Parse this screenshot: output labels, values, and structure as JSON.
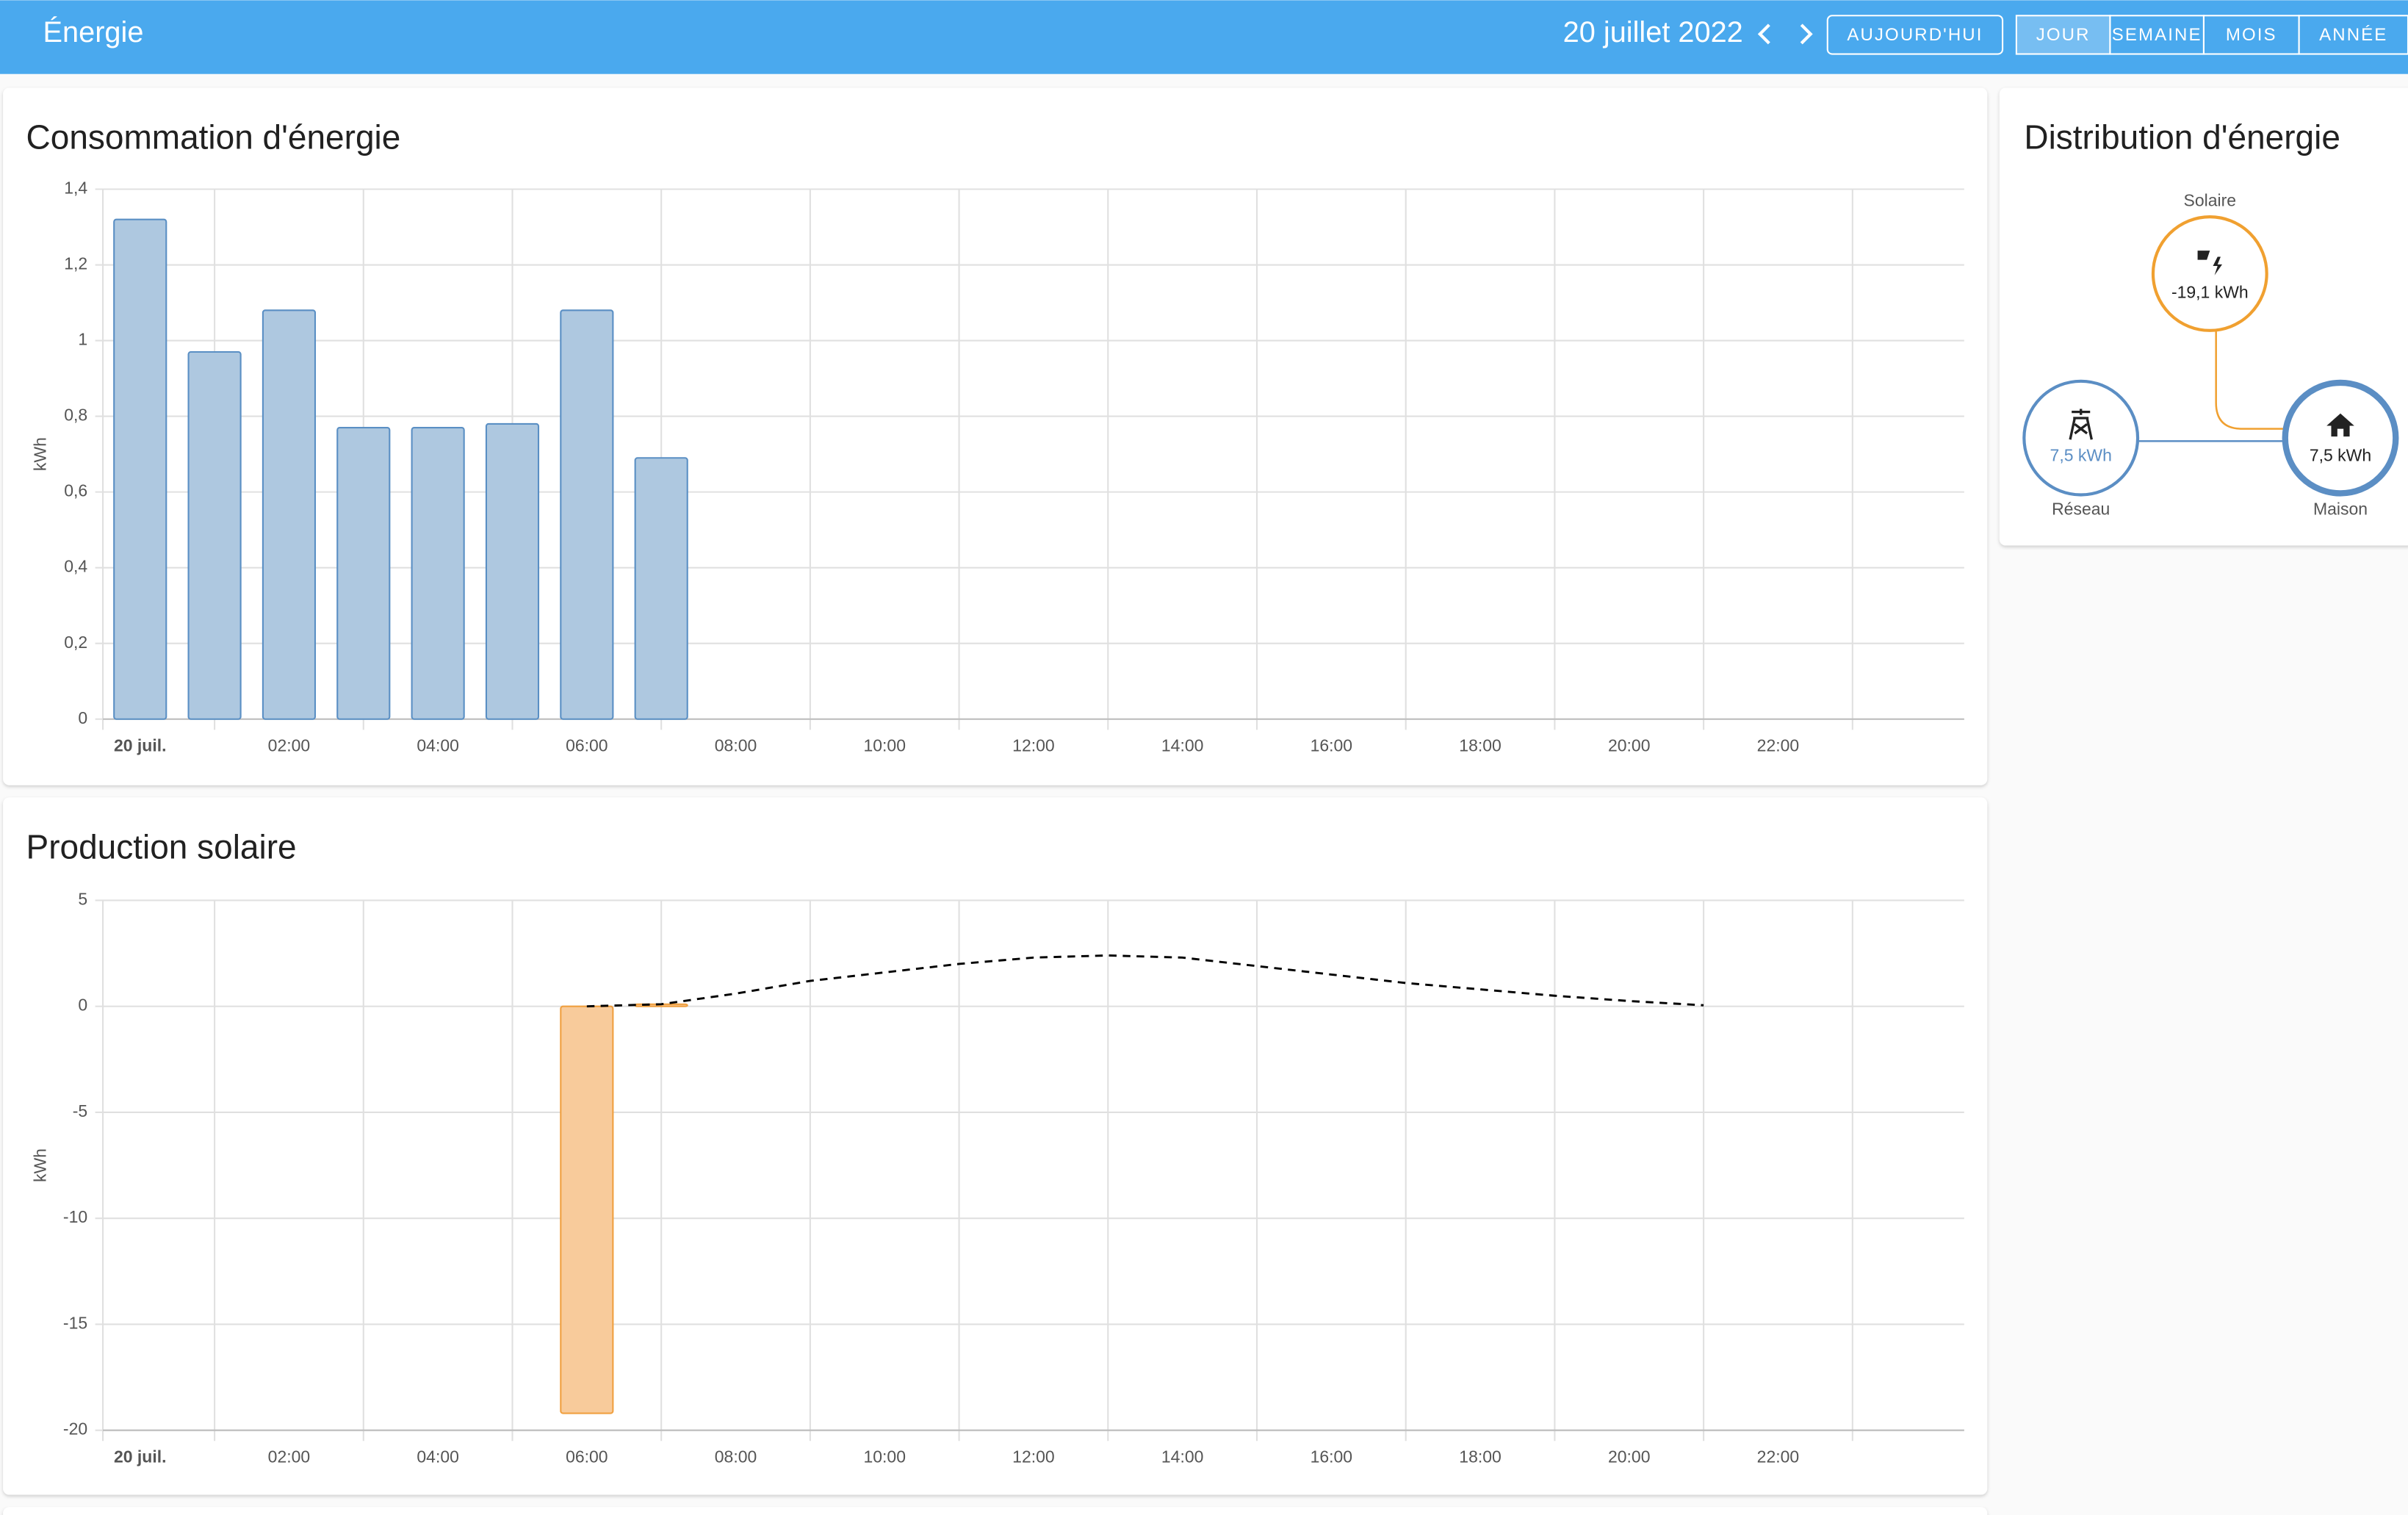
{
  "header": {
    "title": "Énergie",
    "date": "20 juillet 2022",
    "today": "AUJOURD'HUI",
    "periods": [
      "JOUR",
      "SEMAINE",
      "MOIS",
      "ANNÉE"
    ]
  },
  "chart_data": [
    {
      "type": "bar",
      "title": "Consommation d'énergie",
      "y_label": "kWh",
      "categories": [
        "20 juil.",
        null,
        "02:00",
        null,
        "04:00",
        null,
        "06:00",
        null,
        "08:00",
        null,
        "10:00",
        null,
        "12:00",
        null,
        "14:00",
        null,
        "16:00",
        null,
        "18:00",
        null,
        "20:00",
        null,
        "22:00",
        null,
        null
      ],
      "series": [
        {
          "type": "bar",
          "color": "#aec8e0",
          "stroke": "#5a8fc4",
          "values": [
            1.32,
            0.97,
            1.08,
            0.77,
            0.77,
            0.78,
            1.08,
            0.69,
            null,
            null,
            null,
            null,
            null,
            null,
            null,
            null,
            null,
            null,
            null,
            null,
            null,
            null,
            null,
            null,
            null
          ]
        }
      ],
      "ylim": [
        0,
        1.4
      ],
      "yticks": [
        0,
        {
          "value": 0.2,
          "label": "0,2"
        },
        {
          "value": 0.4,
          "label": "0,4"
        },
        {
          "value": 0.6,
          "label": "0,6"
        },
        {
          "value": 0.8,
          "label": "0,8"
        },
        1,
        {
          "value": 1.2,
          "label": "1,2"
        },
        {
          "value": 1.4,
          "label": "1,4"
        }
      ],
      "grid": true
    },
    {
      "type": "bar",
      "title": "Production solaire",
      "y_label": "kWh",
      "categories": [
        "20 juil.",
        null,
        "02:00",
        null,
        "04:00",
        null,
        "06:00",
        null,
        "08:00",
        null,
        "10:00",
        null,
        "12:00",
        null,
        "14:00",
        null,
        "16:00",
        null,
        "18:00",
        null,
        "20:00",
        null,
        "22:00",
        null,
        null
      ],
      "series": [
        {
          "type": "bar",
          "color": "#f8cb9b",
          "stroke": "#f0a040",
          "values": [
            null,
            null,
            null,
            null,
            null,
            null,
            -19.2,
            0.1,
            null,
            null,
            null,
            null,
            null,
            null,
            null,
            null,
            null,
            null,
            null,
            null,
            null,
            null,
            null,
            null,
            null
          ]
        },
        {
          "type": "line",
          "color": "#000000",
          "dashed": true,
          "values": [
            null,
            null,
            null,
            null,
            null,
            null,
            0,
            0.1,
            0.6,
            1.2,
            1.6,
            2.0,
            2.3,
            2.4,
            2.3,
            1.9,
            1.5,
            1.1,
            0.8,
            0.5,
            0.25,
            0.05,
            null,
            null,
            null
          ]
        }
      ],
      "ylim": [
        -20,
        5
      ],
      "yticks": [
        -20,
        -15,
        -10,
        -5,
        0,
        5
      ],
      "grid": true
    }
  ],
  "distribution": {
    "title": "Distribution d'énergie",
    "solar": {
      "label": "Solaire",
      "value": "-19,1 kWh"
    },
    "grid": {
      "label": "Réseau",
      "value": "7,5 kWh"
    },
    "home": {
      "label": "Maison",
      "value": "7,5 kWh"
    }
  }
}
